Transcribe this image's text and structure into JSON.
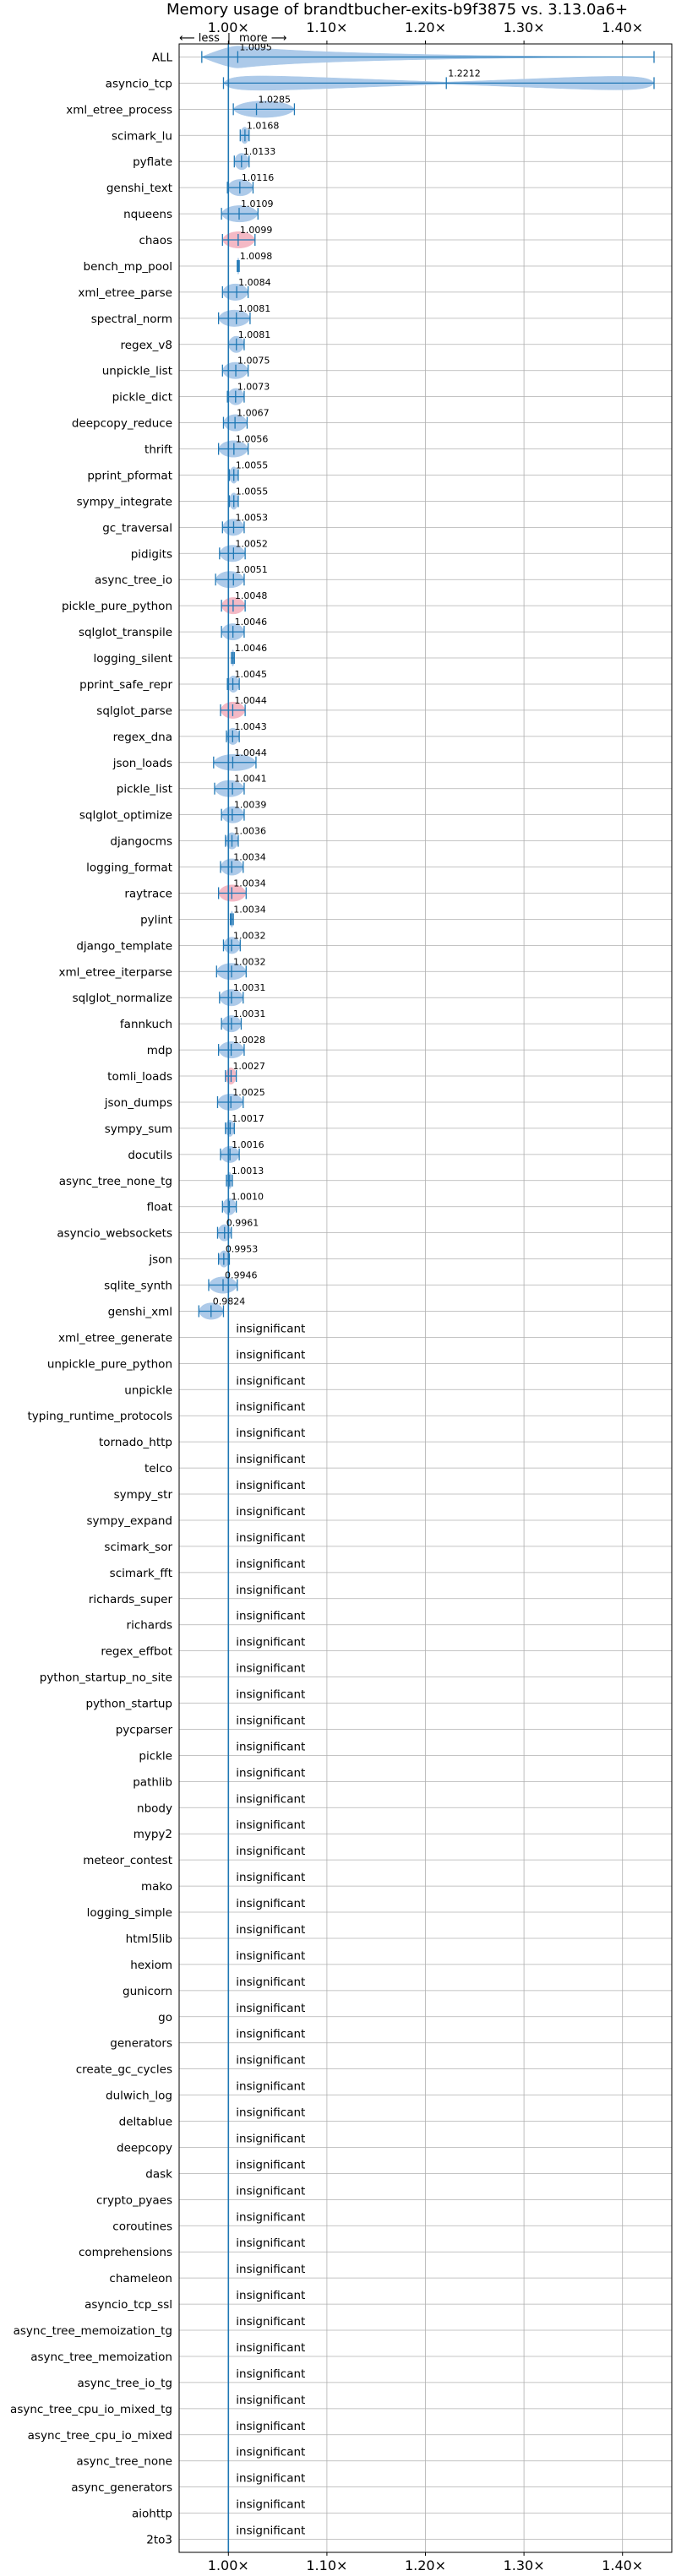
{
  "chart_data": {
    "type": "violin",
    "title": "Memory usage of brandtbucher-exits-b9f3875 vs. 3.13.0a6+",
    "direction_labels": {
      "left": "⟵ less",
      "separator": "|",
      "right": "more ⟶"
    },
    "insignificant_label": "insignificant",
    "xlim": [
      0.95,
      1.45
    ],
    "xticks": [
      {
        "value": 1.0,
        "label": "1.00×"
      },
      {
        "value": 1.1,
        "label": "1.10×"
      },
      {
        "value": 1.2,
        "label": "1.20×"
      },
      {
        "value": 1.3,
        "label": "1.30×"
      },
      {
        "value": 1.4,
        "label": "1.40×"
      }
    ],
    "reference_line": 1.0,
    "grid": true,
    "colors": {
      "violin": "#a9c8e8",
      "violin_highlight": "#f4b6c2",
      "line": "#1f77b4",
      "grid": "#b0b0b0"
    },
    "benchmarks": [
      {
        "name": "ALL",
        "value": 1.0095,
        "label": "1.0095",
        "min": 0.973,
        "max": 1.432,
        "spread": 0.008,
        "color": "blue"
      },
      {
        "name": "asyncio_tcp",
        "value": 1.2212,
        "label": "1.2212",
        "min": 0.995,
        "max": 1.432,
        "spread": 0.012,
        "color": "blue"
      },
      {
        "name": "xml_etree_process",
        "value": 1.0285,
        "label": "1.0285",
        "min": 1.005,
        "max": 1.067,
        "spread": 0.009,
        "color": "blue"
      },
      {
        "name": "scimark_lu",
        "value": 1.0168,
        "label": "1.0168",
        "min": 1.012,
        "max": 1.021,
        "spread": 0.005,
        "color": "blue"
      },
      {
        "name": "pyflate",
        "value": 1.0133,
        "label": "1.0133",
        "min": 1.006,
        "max": 1.021,
        "spread": 0.006,
        "color": "blue"
      },
      {
        "name": "genshi_text",
        "value": 1.0116,
        "label": "1.0116",
        "min": 0.999,
        "max": 1.025,
        "spread": 0.008,
        "color": "blue"
      },
      {
        "name": "nqueens",
        "value": 1.0109,
        "label": "1.0109",
        "min": 0.993,
        "max": 1.03,
        "spread": 0.01,
        "color": "blue"
      },
      {
        "name": "chaos",
        "value": 1.0099,
        "label": "1.0099",
        "min": 0.994,
        "max": 1.027,
        "spread": 0.01,
        "color": "pink"
      },
      {
        "name": "bench_mp_pool",
        "value": 1.0098,
        "label": "1.0098",
        "min": 1.009,
        "max": 1.011,
        "spread": 0.002,
        "color": "blue"
      },
      {
        "name": "xml_etree_parse",
        "value": 1.0084,
        "label": "1.0084",
        "min": 0.994,
        "max": 1.02,
        "spread": 0.009,
        "color": "blue"
      },
      {
        "name": "spectral_norm",
        "value": 1.0081,
        "label": "1.0081",
        "min": 0.99,
        "max": 1.022,
        "spread": 0.009,
        "color": "blue"
      },
      {
        "name": "regex_v8",
        "value": 1.0081,
        "label": "1.0081",
        "min": 1.0,
        "max": 1.016,
        "spread": 0.006,
        "color": "blue"
      },
      {
        "name": "unpickle_list",
        "value": 1.0075,
        "label": "1.0075",
        "min": 0.994,
        "max": 1.02,
        "spread": 0.008,
        "color": "blue"
      },
      {
        "name": "pickle_dict",
        "value": 1.0073,
        "label": "1.0073",
        "min": 0.999,
        "max": 1.016,
        "spread": 0.006,
        "color": "blue"
      },
      {
        "name": "deepcopy_reduce",
        "value": 1.0067,
        "label": "1.0067",
        "min": 0.995,
        "max": 1.019,
        "spread": 0.008,
        "color": "blue"
      },
      {
        "name": "thrift",
        "value": 1.0056,
        "label": "1.0056",
        "min": 0.99,
        "max": 1.02,
        "spread": 0.009,
        "color": "blue"
      },
      {
        "name": "pprint_pformat",
        "value": 1.0055,
        "label": "1.0055",
        "min": 1.001,
        "max": 1.01,
        "spread": 0.004,
        "color": "blue"
      },
      {
        "name": "sympy_integrate",
        "value": 1.0055,
        "label": "1.0055",
        "min": 1.001,
        "max": 1.01,
        "spread": 0.004,
        "color": "blue"
      },
      {
        "name": "gc_traversal",
        "value": 1.0053,
        "label": "1.0053",
        "min": 0.994,
        "max": 1.016,
        "spread": 0.007,
        "color": "blue"
      },
      {
        "name": "pidigits",
        "value": 1.0052,
        "label": "1.0052",
        "min": 0.991,
        "max": 1.017,
        "spread": 0.008,
        "color": "blue"
      },
      {
        "name": "async_tree_io",
        "value": 1.0051,
        "label": "1.0051",
        "min": 0.987,
        "max": 1.016,
        "spread": 0.009,
        "color": "blue"
      },
      {
        "name": "pickle_pure_python",
        "value": 1.0048,
        "label": "1.0048",
        "min": 0.993,
        "max": 1.017,
        "spread": 0.01,
        "color": "pink"
      },
      {
        "name": "sqlglot_transpile",
        "value": 1.0046,
        "label": "1.0046",
        "min": 0.993,
        "max": 1.016,
        "spread": 0.008,
        "color": "blue"
      },
      {
        "name": "logging_silent",
        "value": 1.0046,
        "label": "1.0046",
        "min": 1.003,
        "max": 1.006,
        "spread": 0.002,
        "color": "blue"
      },
      {
        "name": "pprint_safe_repr",
        "value": 1.0045,
        "label": "1.0045",
        "min": 0.999,
        "max": 1.011,
        "spread": 0.005,
        "color": "blue"
      },
      {
        "name": "sqlglot_parse",
        "value": 1.0044,
        "label": "1.0044",
        "min": 0.992,
        "max": 1.017,
        "spread": 0.009,
        "color": "pink"
      },
      {
        "name": "regex_dna",
        "value": 1.0043,
        "label": "1.0043",
        "min": 0.998,
        "max": 1.011,
        "spread": 0.005,
        "color": "blue"
      },
      {
        "name": "json_loads",
        "value": 1.0044,
        "label": "1.0044",
        "min": 0.985,
        "max": 1.028,
        "spread": 0.011,
        "color": "blue"
      },
      {
        "name": "pickle_list",
        "value": 1.0041,
        "label": "1.0041",
        "min": 0.986,
        "max": 1.016,
        "spread": 0.009,
        "color": "blue"
      },
      {
        "name": "sqlglot_optimize",
        "value": 1.0039,
        "label": "1.0039",
        "min": 0.993,
        "max": 1.016,
        "spread": 0.008,
        "color": "blue"
      },
      {
        "name": "djangocms",
        "value": 1.0036,
        "label": "1.0036",
        "min": 0.997,
        "max": 1.01,
        "spread": 0.005,
        "color": "blue"
      },
      {
        "name": "logging_format",
        "value": 1.0034,
        "label": "1.0034",
        "min": 0.992,
        "max": 1.015,
        "spread": 0.008,
        "color": "blue"
      },
      {
        "name": "raytrace",
        "value": 1.0034,
        "label": "1.0034",
        "min": 0.99,
        "max": 1.018,
        "spread": 0.01,
        "color": "pink"
      },
      {
        "name": "pylint",
        "value": 1.0034,
        "label": "1.0034",
        "min": 1.002,
        "max": 1.005,
        "spread": 0.002,
        "color": "blue"
      },
      {
        "name": "django_template",
        "value": 1.0032,
        "label": "1.0032",
        "min": 0.995,
        "max": 1.012,
        "spread": 0.006,
        "color": "blue"
      },
      {
        "name": "xml_etree_iterparse",
        "value": 1.0032,
        "label": "1.0032",
        "min": 0.988,
        "max": 1.018,
        "spread": 0.009,
        "color": "blue"
      },
      {
        "name": "sqlglot_normalize",
        "value": 1.0031,
        "label": "1.0031",
        "min": 0.991,
        "max": 1.015,
        "spread": 0.008,
        "color": "blue"
      },
      {
        "name": "fannkuch",
        "value": 1.0031,
        "label": "1.0031",
        "min": 0.993,
        "max": 1.013,
        "spread": 0.007,
        "color": "blue"
      },
      {
        "name": "mdp",
        "value": 1.0028,
        "label": "1.0028",
        "min": 0.99,
        "max": 1.016,
        "spread": 0.009,
        "color": "blue"
      },
      {
        "name": "tomli_loads",
        "value": 1.0027,
        "label": "1.0027",
        "min": 0.997,
        "max": 1.008,
        "spread": 0.006,
        "color": "pink"
      },
      {
        "name": "json_dumps",
        "value": 1.0025,
        "label": "1.0025",
        "min": 0.989,
        "max": 1.015,
        "spread": 0.008,
        "color": "blue"
      },
      {
        "name": "sympy_sum",
        "value": 1.0017,
        "label": "1.0017",
        "min": 0.997,
        "max": 1.006,
        "spread": 0.004,
        "color": "blue"
      },
      {
        "name": "docutils",
        "value": 1.0016,
        "label": "1.0016",
        "min": 0.992,
        "max": 1.011,
        "spread": 0.006,
        "color": "blue"
      },
      {
        "name": "async_tree_none_tg",
        "value": 1.0013,
        "label": "1.0013",
        "min": 0.998,
        "max": 1.004,
        "spread": 0.003,
        "color": "blue"
      },
      {
        "name": "float",
        "value": 1.001,
        "label": "1.0010",
        "min": 0.994,
        "max": 1.008,
        "spread": 0.005,
        "color": "blue"
      },
      {
        "name": "asyncio_websockets",
        "value": 0.9961,
        "label": "0.9961",
        "min": 0.989,
        "max": 1.003,
        "spread": 0.006,
        "color": "blue"
      },
      {
        "name": "json",
        "value": 0.9953,
        "label": "0.9953",
        "min": 0.99,
        "max": 1.001,
        "spread": 0.005,
        "color": "blue"
      },
      {
        "name": "sqlite_synth",
        "value": 0.9946,
        "label": "0.9946",
        "min": 0.98,
        "max": 1.009,
        "spread": 0.009,
        "color": "blue"
      },
      {
        "name": "genshi_xml",
        "value": 0.9824,
        "label": "0.9824",
        "min": 0.97,
        "max": 0.995,
        "spread": 0.009,
        "color": "blue"
      },
      {
        "name": "xml_etree_generate",
        "insignificant": true
      },
      {
        "name": "unpickle_pure_python",
        "insignificant": true
      },
      {
        "name": "unpickle",
        "insignificant": true
      },
      {
        "name": "typing_runtime_protocols",
        "insignificant": true
      },
      {
        "name": "tornado_http",
        "insignificant": true
      },
      {
        "name": "telco",
        "insignificant": true
      },
      {
        "name": "sympy_str",
        "insignificant": true
      },
      {
        "name": "sympy_expand",
        "insignificant": true
      },
      {
        "name": "scimark_sor",
        "insignificant": true
      },
      {
        "name": "scimark_fft",
        "insignificant": true
      },
      {
        "name": "richards_super",
        "insignificant": true
      },
      {
        "name": "richards",
        "insignificant": true
      },
      {
        "name": "regex_effbot",
        "insignificant": true
      },
      {
        "name": "python_startup_no_site",
        "insignificant": true
      },
      {
        "name": "python_startup",
        "insignificant": true
      },
      {
        "name": "pycparser",
        "insignificant": true
      },
      {
        "name": "pickle",
        "insignificant": true
      },
      {
        "name": "pathlib",
        "insignificant": true
      },
      {
        "name": "nbody",
        "insignificant": true
      },
      {
        "name": "mypy2",
        "insignificant": true
      },
      {
        "name": "meteor_contest",
        "insignificant": true
      },
      {
        "name": "mako",
        "insignificant": true
      },
      {
        "name": "logging_simple",
        "insignificant": true
      },
      {
        "name": "html5lib",
        "insignificant": true
      },
      {
        "name": "hexiom",
        "insignificant": true
      },
      {
        "name": "gunicorn",
        "insignificant": true
      },
      {
        "name": "go",
        "insignificant": true
      },
      {
        "name": "generators",
        "insignificant": true
      },
      {
        "name": "create_gc_cycles",
        "insignificant": true
      },
      {
        "name": "dulwich_log",
        "insignificant": true
      },
      {
        "name": "deltablue",
        "insignificant": true
      },
      {
        "name": "deepcopy",
        "insignificant": true
      },
      {
        "name": "dask",
        "insignificant": true
      },
      {
        "name": "crypto_pyaes",
        "insignificant": true
      },
      {
        "name": "coroutines",
        "insignificant": true
      },
      {
        "name": "comprehensions",
        "insignificant": true
      },
      {
        "name": "chameleon",
        "insignificant": true
      },
      {
        "name": "asyncio_tcp_ssl",
        "insignificant": true
      },
      {
        "name": "async_tree_memoization_tg",
        "insignificant": true
      },
      {
        "name": "async_tree_memoization",
        "insignificant": true
      },
      {
        "name": "async_tree_io_tg",
        "insignificant": true
      },
      {
        "name": "async_tree_cpu_io_mixed_tg",
        "insignificant": true
      },
      {
        "name": "async_tree_cpu_io_mixed",
        "insignificant": true
      },
      {
        "name": "async_tree_none",
        "insignificant": true
      },
      {
        "name": "async_generators",
        "insignificant": true
      },
      {
        "name": "aiohttp",
        "insignificant": true
      },
      {
        "name": "2to3",
        "insignificant": true
      }
    ]
  }
}
